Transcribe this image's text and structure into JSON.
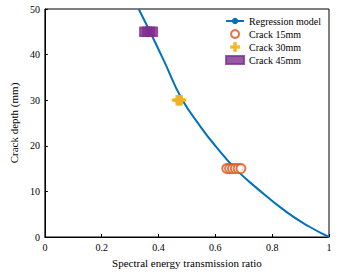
{
  "chart_data": {
    "type": "scatter",
    "x_label": "Spectral energy transmission ratio",
    "y_label": "Crack depth (mm)",
    "xlim": [
      0,
      1
    ],
    "xticks": [
      0,
      0.2,
      0.4,
      0.6,
      0.8,
      1
    ],
    "ylim": [
      0,
      50
    ],
    "yticks": [
      0,
      10,
      20,
      30,
      40,
      50
    ],
    "grid": false,
    "legend": "upper right",
    "series": [
      {
        "name": "Regression model",
        "type": "line",
        "color": "#0072bd",
        "line_style": "solid",
        "values": [
          [
            0.33,
            50
          ],
          [
            0.37,
            45
          ],
          [
            0.42,
            38.5
          ],
          [
            0.48,
            30.5
          ],
          [
            0.55,
            24
          ],
          [
            0.6,
            20
          ],
          [
            0.67,
            15
          ],
          [
            0.75,
            10.5
          ],
          [
            0.85,
            5.5
          ],
          [
            0.93,
            2.3
          ],
          [
            1,
            0
          ]
        ]
      },
      {
        "name": "Crack 15mm",
        "type": "scatter",
        "color": "#d95319",
        "marker": "circle",
        "values": [
          [
            0.64,
            15
          ],
          [
            0.65,
            15
          ],
          [
            0.66,
            15
          ],
          [
            0.67,
            15
          ],
          [
            0.68,
            15
          ],
          [
            0.69,
            15
          ]
        ]
      },
      {
        "name": "Crack 30mm",
        "type": "scatter",
        "color": "#edb120",
        "marker": "plus",
        "values": [
          [
            0.465,
            30
          ],
          [
            0.47,
            30
          ],
          [
            0.475,
            30
          ],
          [
            0.48,
            30
          ]
        ]
      },
      {
        "name": "Crack 45mm",
        "type": "scatter",
        "color": "#7e2f8e",
        "marker": "square",
        "values": [
          [
            0.35,
            45
          ],
          [
            0.36,
            45
          ],
          [
            0.37,
            45
          ],
          [
            0.38,
            45
          ]
        ]
      }
    ]
  }
}
